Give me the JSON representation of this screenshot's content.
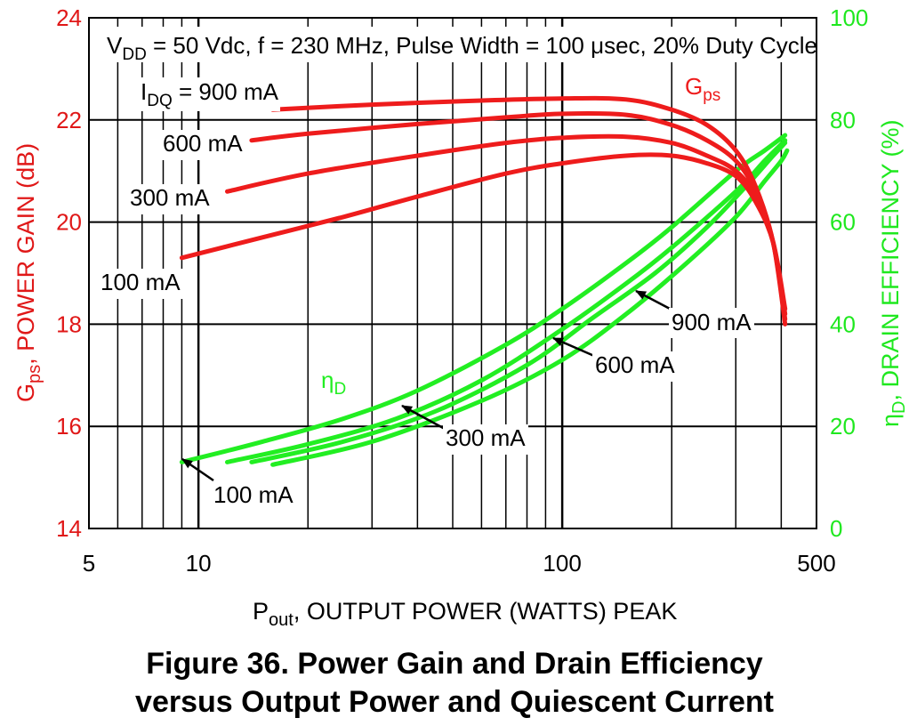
{
  "chart_data": {
    "type": "line",
    "title": "",
    "condition": {
      "vdd_main": "V",
      "vdd_sub": "DD",
      "rest": " = 50 Vdc, f = 230 MHz, Pulse Width = 100 μsec, 20% Duty Cycle"
    },
    "xlabel": {
      "main": "P",
      "sub": "out",
      "rest": ", OUTPUT POWER (WATTS) PEAK"
    },
    "ylabel_left": {
      "main": "G",
      "sub": "ps",
      "rest": ", POWER GAIN (dB)"
    },
    "ylabel_right": {
      "main": "η",
      "sub": "D",
      "rest": ", DRAIN EFFICIENCY (%)"
    },
    "x_scale": "log",
    "xlim": [
      5,
      500
    ],
    "x_ticks": [
      "5",
      "10",
      "100",
      "500"
    ],
    "ylim_left": [
      14,
      24
    ],
    "y_ticks_left": [
      "14",
      "16",
      "18",
      "20",
      "22",
      "24"
    ],
    "ylim_right": [
      0,
      100
    ],
    "y_ticks_right": [
      "0",
      "20",
      "40",
      "60",
      "80",
      "100"
    ],
    "grid": true,
    "colors": {
      "gain": "#ee1c1c",
      "efficiency": "#22ee22",
      "left_axis": "#e01818",
      "right_axis": "#1fe81f"
    },
    "gain_label": {
      "main": "G",
      "sub": "ps"
    },
    "eff_label": {
      "main": "η",
      "sub": "D"
    },
    "idq_label": {
      "main": "I",
      "sub": "DQ",
      "rest": " = 900 mA"
    },
    "gain_series": [
      {
        "name": "900 mA",
        "points": [
          [
            16,
            22.2
          ],
          [
            30,
            22.3
          ],
          [
            60,
            22.38
          ],
          [
            100,
            22.42
          ],
          [
            150,
            22.4
          ],
          [
            200,
            22.2
          ],
          [
            250,
            21.9
          ],
          [
            300,
            21.4
          ],
          [
            340,
            20.7
          ],
          [
            380,
            19.6
          ],
          [
            410,
            18.0
          ]
        ]
      },
      {
        "name": "600 mA",
        "points": [
          [
            14,
            21.6
          ],
          [
            20,
            21.73
          ],
          [
            40,
            21.92
          ],
          [
            70,
            22.05
          ],
          [
            100,
            22.12
          ],
          [
            150,
            22.1
          ],
          [
            200,
            21.9
          ],
          [
            250,
            21.6
          ],
          [
            300,
            21.2
          ],
          [
            340,
            20.6
          ],
          [
            380,
            19.6
          ],
          [
            410,
            18.1
          ]
        ]
      },
      {
        "name": "300 mA",
        "points": [
          [
            12,
            20.6
          ],
          [
            20,
            20.95
          ],
          [
            40,
            21.3
          ],
          [
            70,
            21.55
          ],
          [
            100,
            21.65
          ],
          [
            150,
            21.67
          ],
          [
            200,
            21.55
          ],
          [
            250,
            21.3
          ],
          [
            300,
            21.0
          ],
          [
            340,
            20.5
          ],
          [
            380,
            19.6
          ],
          [
            410,
            18.2
          ]
        ]
      },
      {
        "name": "100 mA",
        "points": [
          [
            9,
            19.3
          ],
          [
            15,
            19.7
          ],
          [
            25,
            20.1
          ],
          [
            40,
            20.5
          ],
          [
            70,
            20.95
          ],
          [
            100,
            21.15
          ],
          [
            150,
            21.3
          ],
          [
            200,
            21.3
          ],
          [
            250,
            21.15
          ],
          [
            300,
            20.9
          ],
          [
            340,
            20.4
          ],
          [
            380,
            19.6
          ],
          [
            410,
            18.3
          ]
        ]
      }
    ],
    "efficiency_series": [
      {
        "name": "100 mA",
        "points": [
          [
            9,
            13
          ],
          [
            15,
            17
          ],
          [
            25,
            21.5
          ],
          [
            40,
            27
          ],
          [
            70,
            36
          ],
          [
            100,
            43
          ],
          [
            150,
            52
          ],
          [
            200,
            59
          ],
          [
            300,
            70
          ],
          [
            360,
            74
          ],
          [
            410,
            77
          ]
        ]
      },
      {
        "name": "300 mA",
        "points": [
          [
            12,
            13
          ],
          [
            20,
            16.5
          ],
          [
            35,
            21.5
          ],
          [
            60,
            29
          ],
          [
            100,
            39
          ],
          [
            150,
            48
          ],
          [
            200,
            55
          ],
          [
            300,
            66
          ],
          [
            360,
            72
          ],
          [
            410,
            76
          ]
        ]
      },
      {
        "name": "600 mA",
        "points": [
          [
            14,
            13
          ],
          [
            25,
            17
          ],
          [
            45,
            23
          ],
          [
            80,
            32
          ],
          [
            120,
            41
          ],
          [
            180,
            50
          ],
          [
            250,
            59
          ],
          [
            320,
            67
          ],
          [
            380,
            73
          ],
          [
            410,
            75.5
          ]
        ]
      },
      {
        "name": "900 mA",
        "points": [
          [
            16,
            12.5
          ],
          [
            30,
            17
          ],
          [
            60,
            25
          ],
          [
            100,
            33
          ],
          [
            150,
            42
          ],
          [
            220,
            52
          ],
          [
            300,
            61
          ],
          [
            360,
            68
          ],
          [
            400,
            72
          ],
          [
            415,
            74
          ]
        ]
      }
    ],
    "annotations": [
      {
        "text": "900 mA",
        "series": "gain"
      },
      {
        "text": "600 mA",
        "series": "gain"
      },
      {
        "text": "300 mA",
        "series": "gain"
      },
      {
        "text": "100 mA",
        "series": "gain"
      },
      {
        "text": "900 mA",
        "series": "efficiency"
      },
      {
        "text": "600 mA",
        "series": "efficiency"
      },
      {
        "text": "300 mA",
        "series": "efficiency"
      },
      {
        "text": "100 mA",
        "series": "efficiency"
      }
    ]
  },
  "caption": {
    "line1": "Figure 36. Power Gain and Drain Efficiency",
    "line2": "versus Output Power and Quiescent Current"
  }
}
